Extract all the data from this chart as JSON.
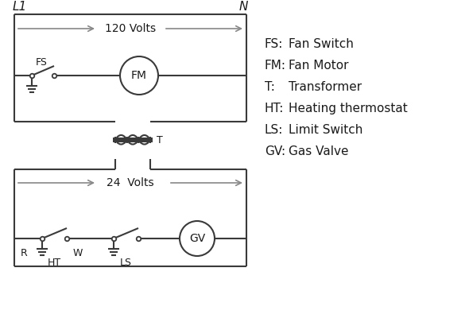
{
  "background_color": "#ffffff",
  "line_color": "#3a3a3a",
  "arrow_color": "#888888",
  "text_color": "#1a1a1a",
  "legend_items": [
    [
      "FS:",
      "Fan Switch"
    ],
    [
      "FM:",
      "Fan Motor"
    ],
    [
      "T:",
      "Transformer"
    ],
    [
      "HT:",
      "Heating thermostat"
    ],
    [
      "LS:",
      "Limit Switch"
    ],
    [
      "GV:",
      "Gas Valve"
    ]
  ],
  "label_L1": "L1",
  "label_N": "N",
  "label_120V": "120 Volts",
  "label_24V": "24  Volts",
  "label_T": "T",
  "label_R": "R",
  "label_W": "W",
  "label_FS": "FS",
  "label_FM": "FM",
  "label_HT": "HT",
  "label_LS": "LS",
  "label_GV": "GV"
}
